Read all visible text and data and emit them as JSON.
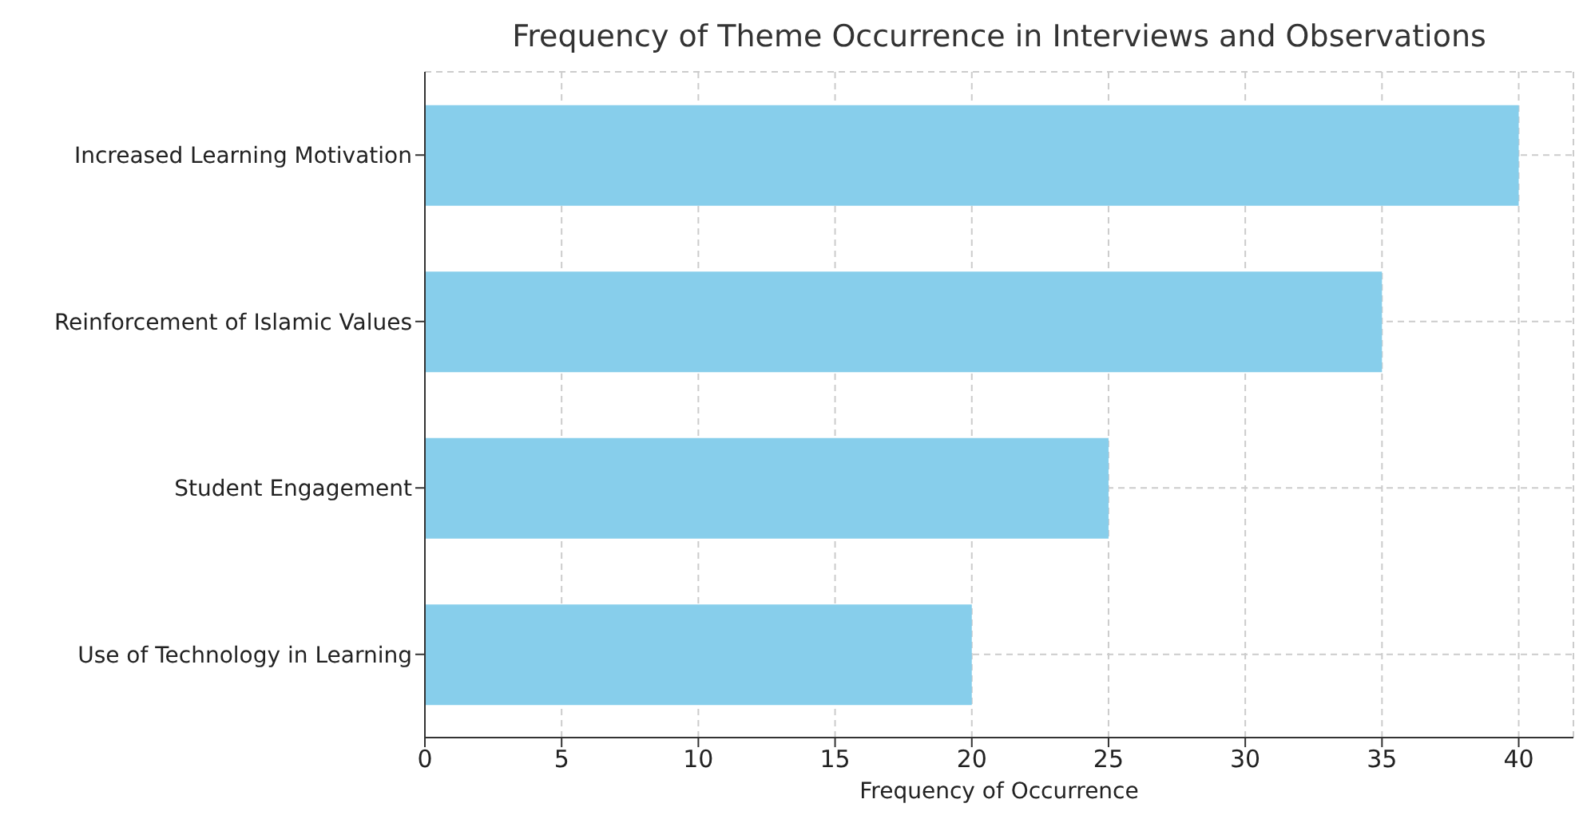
{
  "chart_data": {
    "type": "bar",
    "orientation": "horizontal",
    "title": "Frequency of Theme Occurrence in Interviews and Observations",
    "xlabel": "Frequency of Occurrence",
    "categories": [
      "Increased Learning Motivation",
      "Reinforcement of Islamic Values",
      "Student Engagement",
      "Use of Technology in Learning"
    ],
    "values": [
      40,
      35,
      25,
      20
    ],
    "color": "#87ceeb",
    "xlim": [
      0,
      42
    ],
    "xticks": [
      0,
      5,
      10,
      15,
      20,
      25,
      30,
      35,
      40
    ],
    "grid": true
  }
}
